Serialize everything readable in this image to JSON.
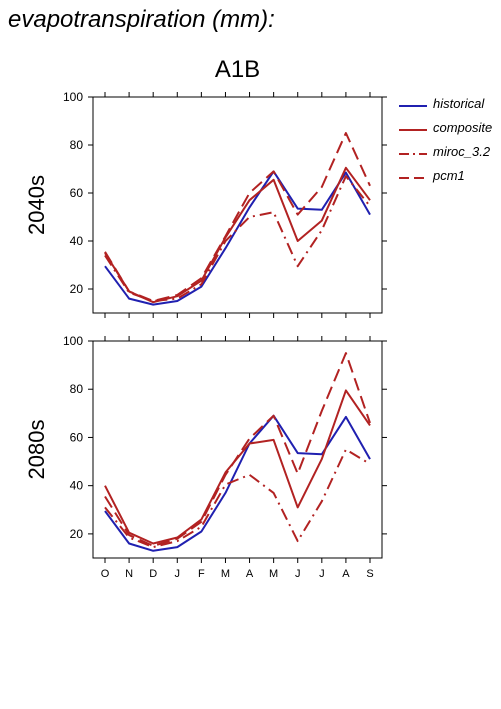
{
  "title": "evapotranspiration (mm):",
  "scenario": "A1B",
  "legend": [
    {
      "name": "historical",
      "color": "#2020b0",
      "dash": "solid"
    },
    {
      "name": "composite",
      "color": "#b22222",
      "dash": "solid"
    },
    {
      "name": "miroc_3.2",
      "color": "#b22222",
      "dash": "dashdot"
    },
    {
      "name": "pcm1",
      "color": "#b22222",
      "dash": "dash"
    }
  ],
  "chart_data": [
    {
      "type": "line",
      "ylabel": "2040s",
      "categories": [
        "O",
        "N",
        "D",
        "J",
        "F",
        "M",
        "A",
        "M",
        "J",
        "J",
        "A",
        "S"
      ],
      "ylim": [
        10,
        100
      ],
      "yticks": [
        20,
        40,
        60,
        80,
        100
      ],
      "series": [
        {
          "name": "historical",
          "values": [
            29.5,
            16,
            13.5,
            15,
            21,
            37,
            54,
            69,
            53.5,
            53,
            68.5,
            51
          ]
        },
        {
          "name": "composite",
          "values": [
            35,
            19,
            14.5,
            17,
            23.5,
            41.5,
            57,
            65.5,
            40,
            48.5,
            70.5,
            57
          ]
        },
        {
          "name": "miroc_3.2",
          "values": [
            34,
            18.5,
            15,
            16,
            22,
            40,
            50,
            52,
            29.5,
            44.5,
            67,
            54.5
          ]
        },
        {
          "name": "pcm1",
          "values": [
            35.5,
            19,
            15,
            17.5,
            24.5,
            42,
            60,
            69,
            51,
            62.5,
            85,
            63
          ]
        }
      ]
    },
    {
      "type": "line",
      "ylabel": "2080s",
      "categories": [
        "O",
        "N",
        "D",
        "J",
        "F",
        "M",
        "A",
        "M",
        "J",
        "J",
        "A",
        "S"
      ],
      "ylim": [
        10,
        100
      ],
      "yticks": [
        20,
        40,
        60,
        80,
        100
      ],
      "series": [
        {
          "name": "historical",
          "values": [
            29.5,
            16,
            13,
            14.5,
            21,
            37,
            57.5,
            69,
            53.5,
            53,
            68.5,
            51
          ]
        },
        {
          "name": "composite",
          "values": [
            40,
            20.5,
            16,
            18.5,
            26,
            45.5,
            57.5,
            59,
            31,
            51,
            79.5,
            65
          ]
        },
        {
          "name": "miroc_3.2",
          "values": [
            31,
            18.5,
            14.5,
            17,
            23,
            40.5,
            44.5,
            37,
            17,
            33.5,
            55,
            49
          ]
        },
        {
          "name": "pcm1",
          "values": [
            35.5,
            19.5,
            15,
            18,
            25,
            44.5,
            59.5,
            69,
            45,
            71,
            95,
            66
          ]
        }
      ]
    }
  ]
}
